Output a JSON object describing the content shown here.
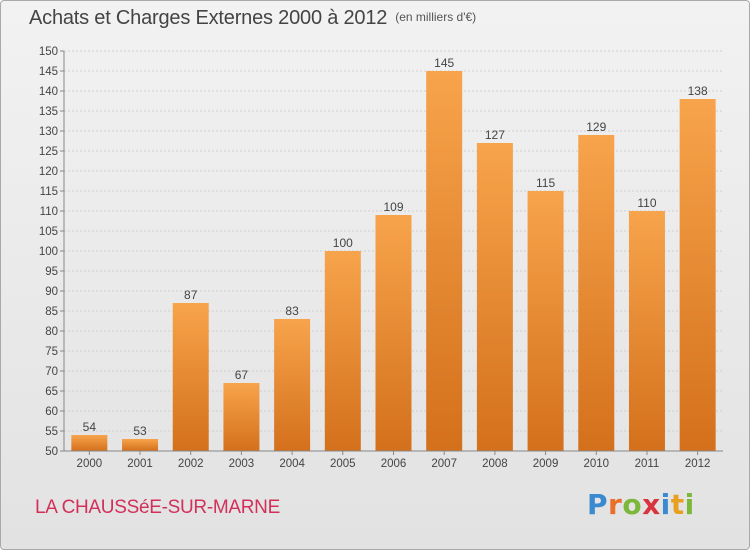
{
  "header": {
    "title": "Achats et Charges Externes 2000 à 2012",
    "subtitle": "(en milliers d'€)"
  },
  "footer": {
    "location": "LA CHAUSSéE-SUR-MARNE",
    "logo": {
      "letters": [
        "P",
        "r",
        "o",
        "x",
        "i",
        "t",
        "i"
      ],
      "colors": [
        "#3b8ad0",
        "#e8702a",
        "#7bb83a",
        "#d8343d",
        "#3b8ad0",
        "#e8a020",
        "#7bb83a"
      ]
    }
  },
  "colors": {
    "bar_light": "#f7a44c",
    "bar_dark": "#d4701c",
    "grid": "#cfcfcf",
    "axis": "#888888",
    "text": "#444444"
  },
  "chart_data": {
    "type": "bar",
    "title": "Achats et Charges Externes 2000 à 2012",
    "subtitle": "(en milliers d'€)",
    "categories": [
      "2000",
      "2001",
      "2002",
      "2003",
      "2004",
      "2005",
      "2006",
      "2007",
      "2008",
      "2009",
      "2010",
      "2011",
      "2012"
    ],
    "values": [
      54,
      53,
      87,
      67,
      83,
      100,
      109,
      145,
      127,
      115,
      129,
      110,
      138
    ],
    "ylim": [
      50,
      150
    ],
    "ytick_step": 5,
    "grid": true,
    "data_labels": true
  }
}
